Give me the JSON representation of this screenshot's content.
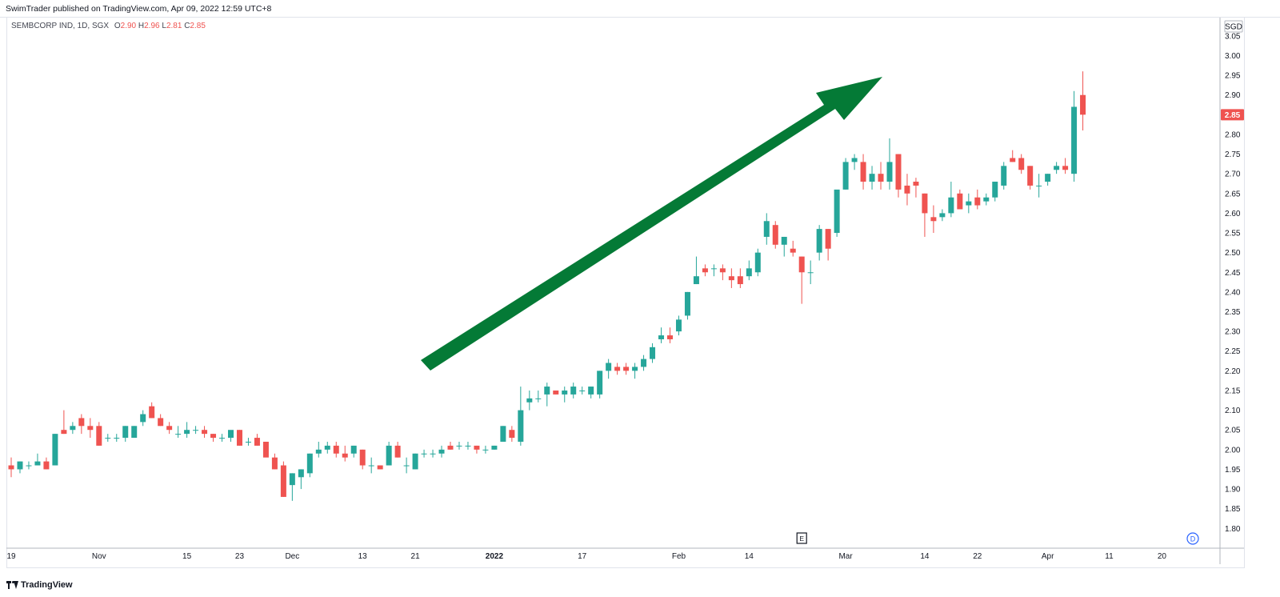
{
  "header": {
    "publish_text": "SwimTrader published on TradingView.com, Apr 09, 2022 12:59 UTC+8"
  },
  "legend": {
    "symbol": "SEMBCORP IND, 1D, SGX",
    "o_label": "O",
    "o_value": "2.90",
    "h_label": "H",
    "h_value": "2.96",
    "l_label": "L",
    "l_value": "2.81",
    "c_label": "C",
    "c_value": "2.85"
  },
  "axis": {
    "currency": "SGD",
    "current_price_label": "2.85",
    "event_marker": "E",
    "interval_marker": "D"
  },
  "footer": {
    "brand": "TradingView"
  },
  "colors": {
    "up": "#26a69a",
    "down": "#ef5350",
    "arrow": "#047a36",
    "price_tag": "#ef5350"
  },
  "chart_data": {
    "type": "candlestick",
    "title": "",
    "xlabel": "",
    "ylabel": "",
    "ylim": [
      1.76,
      3.07
    ],
    "yticks": [
      "1.80",
      "1.85",
      "1.90",
      "1.95",
      "2.00",
      "2.05",
      "2.10",
      "2.15",
      "2.20",
      "2.25",
      "2.30",
      "2.35",
      "2.40",
      "2.45",
      "2.50",
      "2.55",
      "2.60",
      "2.65",
      "2.70",
      "2.75",
      "2.80",
      "2.85",
      "2.90",
      "2.95",
      "3.00",
      "3.05"
    ],
    "xticks": [
      {
        "label": "19",
        "bar": 0,
        "bold": false
      },
      {
        "label": "Nov",
        "bar": 10,
        "bold": false
      },
      {
        "label": "15",
        "bar": 20,
        "bold": false
      },
      {
        "label": "23",
        "bar": 26,
        "bold": false
      },
      {
        "label": "Dec",
        "bar": 32,
        "bold": false
      },
      {
        "label": "13",
        "bar": 40,
        "bold": false
      },
      {
        "label": "21",
        "bar": 46,
        "bold": false
      },
      {
        "label": "2022",
        "bar": 55,
        "bold": true
      },
      {
        "label": "17",
        "bar": 65,
        "bold": false
      },
      {
        "label": "Feb",
        "bar": 76,
        "bold": false
      },
      {
        "label": "14",
        "bar": 84,
        "bold": false
      },
      {
        "label": "Mar",
        "bar": 95,
        "bold": false
      },
      {
        "label": "14",
        "bar": 104,
        "bold": false
      },
      {
        "label": "22",
        "bar": 110,
        "bold": false
      },
      {
        "label": "Apr",
        "bar": 118,
        "bold": false
      },
      {
        "label": "11",
        "bar": 125,
        "bold": false
      },
      {
        "label": "20",
        "bar": 131,
        "bold": false
      }
    ],
    "event_bar": 90,
    "candles": [
      [
        1.96,
        1.98,
        1.93,
        1.95
      ],
      [
        1.95,
        1.97,
        1.94,
        1.97
      ],
      [
        1.96,
        1.97,
        1.95,
        1.96
      ],
      [
        1.96,
        1.99,
        1.96,
        1.97
      ],
      [
        1.97,
        1.98,
        1.95,
        1.95
      ],
      [
        1.96,
        2.04,
        1.96,
        2.04
      ],
      [
        2.05,
        2.1,
        2.04,
        2.04
      ],
      [
        2.05,
        2.07,
        2.04,
        2.06
      ],
      [
        2.08,
        2.09,
        2.04,
        2.06
      ],
      [
        2.06,
        2.08,
        2.03,
        2.05
      ],
      [
        2.06,
        2.07,
        2.01,
        2.01
      ],
      [
        2.03,
        2.04,
        2.02,
        2.03
      ],
      [
        2.03,
        2.04,
        2.02,
        2.03
      ],
      [
        2.03,
        2.06,
        2.02,
        2.06
      ],
      [
        2.03,
        2.06,
        2.03,
        2.06
      ],
      [
        2.07,
        2.1,
        2.06,
        2.09
      ],
      [
        2.11,
        2.12,
        2.08,
        2.08
      ],
      [
        2.08,
        2.09,
        2.06,
        2.06
      ],
      [
        2.06,
        2.07,
        2.04,
        2.05
      ],
      [
        2.04,
        2.06,
        2.03,
        2.04
      ],
      [
        2.04,
        2.07,
        2.03,
        2.05
      ],
      [
        2.05,
        2.06,
        2.04,
        2.05
      ],
      [
        2.05,
        2.06,
        2.03,
        2.04
      ],
      [
        2.04,
        2.04,
        2.02,
        2.03
      ],
      [
        2.03,
        2.04,
        2.02,
        2.03
      ],
      [
        2.03,
        2.04,
        2.02,
        2.05
      ],
      [
        2.05,
        2.05,
        2.01,
        2.01
      ],
      [
        2.02,
        2.03,
        2.01,
        2.02
      ],
      [
        2.03,
        2.04,
        2.01,
        2.01
      ],
      [
        2.02,
        2.02,
        1.99,
        1.98
      ],
      [
        1.98,
        1.99,
        1.95,
        1.95
      ],
      [
        1.96,
        1.97,
        1.88,
        1.88
      ],
      [
        1.91,
        1.94,
        1.87,
        1.94
      ],
      [
        1.93,
        1.95,
        1.9,
        1.95
      ],
      [
        1.94,
        1.99,
        1.93,
        1.99
      ],
      [
        1.99,
        2.02,
        1.98,
        2.0
      ],
      [
        2.0,
        2.02,
        1.99,
        2.01
      ],
      [
        2.01,
        2.02,
        1.98,
        1.99
      ],
      [
        1.99,
        2.01,
        1.97,
        1.98
      ],
      [
        1.99,
        2.01,
        1.98,
        2.01
      ],
      [
        2.0,
        2.0,
        1.95,
        1.96
      ],
      [
        1.96,
        1.98,
        1.94,
        1.96
      ],
      [
        1.96,
        1.96,
        1.95,
        1.95
      ],
      [
        1.96,
        2.02,
        1.96,
        2.01
      ],
      [
        2.01,
        2.02,
        1.98,
        1.98
      ],
      [
        1.96,
        1.98,
        1.94,
        1.96
      ],
      [
        1.95,
        1.99,
        1.95,
        1.99
      ],
      [
        1.99,
        2.0,
        1.98,
        1.99
      ],
      [
        1.99,
        2.0,
        1.98,
        1.99
      ],
      [
        1.99,
        2.01,
        1.98,
        2.0
      ],
      [
        2.01,
        2.02,
        2.0,
        2.0
      ],
      [
        2.01,
        2.02,
        2.0,
        2.01
      ],
      [
        2.01,
        2.02,
        2.0,
        2.01
      ],
      [
        2.01,
        2.01,
        1.99,
        2.0
      ],
      [
        2.0,
        2.01,
        1.99,
        2.0
      ],
      [
        2.0,
        2.01,
        2.0,
        2.01
      ],
      [
        2.02,
        2.06,
        2.02,
        2.06
      ],
      [
        2.05,
        2.06,
        2.02,
        2.03
      ],
      [
        2.02,
        2.16,
        2.01,
        2.1
      ],
      [
        2.12,
        2.15,
        2.1,
        2.13
      ],
      [
        2.13,
        2.15,
        2.12,
        2.13
      ],
      [
        2.14,
        2.17,
        2.11,
        2.16
      ],
      [
        2.15,
        2.15,
        2.14,
        2.14
      ],
      [
        2.14,
        2.16,
        2.12,
        2.15
      ],
      [
        2.14,
        2.17,
        2.13,
        2.16
      ],
      [
        2.15,
        2.16,
        2.14,
        2.15
      ],
      [
        2.14,
        2.16,
        2.13,
        2.16
      ],
      [
        2.14,
        2.2,
        2.13,
        2.2
      ],
      [
        2.2,
        2.23,
        2.18,
        2.22
      ],
      [
        2.21,
        2.22,
        2.19,
        2.2
      ],
      [
        2.21,
        2.22,
        2.19,
        2.2
      ],
      [
        2.2,
        2.22,
        2.18,
        2.21
      ],
      [
        2.21,
        2.24,
        2.2,
        2.23
      ],
      [
        2.23,
        2.27,
        2.22,
        2.26
      ],
      [
        2.28,
        2.31,
        2.27,
        2.29
      ],
      [
        2.29,
        2.31,
        2.27,
        2.28
      ],
      [
        2.3,
        2.34,
        2.29,
        2.33
      ],
      [
        2.34,
        2.4,
        2.33,
        2.4
      ],
      [
        2.42,
        2.49,
        2.42,
        2.44
      ],
      [
        2.46,
        2.47,
        2.44,
        2.45
      ],
      [
        2.46,
        2.47,
        2.44,
        2.46
      ],
      [
        2.46,
        2.47,
        2.43,
        2.45
      ],
      [
        2.44,
        2.46,
        2.41,
        2.43
      ],
      [
        2.44,
        2.46,
        2.41,
        2.42
      ],
      [
        2.44,
        2.48,
        2.43,
        2.46
      ],
      [
        2.45,
        2.51,
        2.44,
        2.5
      ],
      [
        2.54,
        2.6,
        2.52,
        2.58
      ],
      [
        2.57,
        2.58,
        2.51,
        2.52
      ],
      [
        2.52,
        2.54,
        2.49,
        2.54
      ],
      [
        2.51,
        2.53,
        2.49,
        2.5
      ],
      [
        2.49,
        2.49,
        2.37,
        2.45
      ],
      [
        2.45,
        2.48,
        2.42,
        2.45
      ],
      [
        2.5,
        2.57,
        2.48,
        2.56
      ],
      [
        2.56,
        2.56,
        2.48,
        2.51
      ],
      [
        2.55,
        2.65,
        2.54,
        2.66
      ],
      [
        2.66,
        2.74,
        2.66,
        2.73
      ],
      [
        2.73,
        2.75,
        2.71,
        2.74
      ],
      [
        2.73,
        2.75,
        2.66,
        2.68
      ],
      [
        2.68,
        2.72,
        2.66,
        2.7
      ],
      [
        2.7,
        2.73,
        2.66,
        2.68
      ],
      [
        2.68,
        2.79,
        2.66,
        2.73
      ],
      [
        2.75,
        2.75,
        2.64,
        2.66
      ],
      [
        2.67,
        2.7,
        2.62,
        2.65
      ],
      [
        2.68,
        2.69,
        2.64,
        2.67
      ],
      [
        2.65,
        2.65,
        2.54,
        2.6
      ],
      [
        2.59,
        2.62,
        2.55,
        2.58
      ],
      [
        2.59,
        2.61,
        2.58,
        2.6
      ],
      [
        2.6,
        2.68,
        2.59,
        2.64
      ],
      [
        2.65,
        2.66,
        2.61,
        2.61
      ],
      [
        2.62,
        2.65,
        2.6,
        2.63
      ],
      [
        2.64,
        2.66,
        2.61,
        2.62
      ],
      [
        2.63,
        2.65,
        2.62,
        2.64
      ],
      [
        2.64,
        2.68,
        2.63,
        2.68
      ],
      [
        2.67,
        2.73,
        2.66,
        2.72
      ],
      [
        2.74,
        2.76,
        2.73,
        2.73
      ],
      [
        2.74,
        2.75,
        2.7,
        2.71
      ],
      [
        2.72,
        2.72,
        2.66,
        2.67
      ],
      [
        2.67,
        2.7,
        2.64,
        2.67
      ],
      [
        2.68,
        2.7,
        2.67,
        2.7
      ],
      [
        2.71,
        2.73,
        2.7,
        2.72
      ],
      [
        2.72,
        2.74,
        2.7,
        2.71
      ],
      [
        2.7,
        2.91,
        2.68,
        2.87
      ],
      [
        2.9,
        2.96,
        2.81,
        2.85
      ]
    ]
  }
}
